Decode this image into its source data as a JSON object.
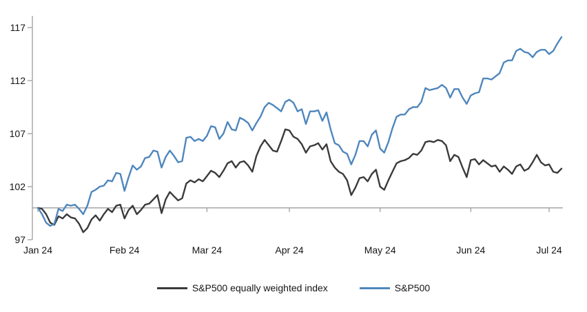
{
  "chart_data": {
    "type": "line",
    "title": "",
    "xlabel": "",
    "ylabel": "",
    "y_ticks": [
      97,
      102,
      107,
      112,
      117
    ],
    "ylim": [
      97,
      118.1
    ],
    "baseline_value": 100,
    "grid": "off",
    "legend_position": "bottom-center",
    "x_tick_labels": [
      "Jan 24",
      "Feb 24",
      "Mar 24",
      "Apr 24",
      "May 24",
      "Jun 24",
      "Jul 24"
    ],
    "x_tick_indices": [
      0,
      21,
      41,
      61,
      83,
      105,
      124
    ],
    "series": [
      {
        "id": "equal-weight",
        "name": "S&P500 equally weighted index",
        "color": "#3a3a3a",
        "values": [
          100.0,
          99.9,
          99.4,
          98.6,
          98.4,
          99.2,
          99.0,
          99.4,
          99.1,
          99.0,
          98.5,
          97.7,
          98.1,
          98.9,
          99.3,
          98.8,
          99.4,
          99.9,
          99.6,
          100.2,
          100.3,
          99.0,
          99.8,
          100.2,
          99.4,
          99.8,
          100.3,
          100.4,
          100.8,
          101.2,
          99.5,
          100.8,
          101.5,
          101.1,
          100.7,
          100.9,
          102.3,
          102.6,
          102.4,
          102.7,
          102.5,
          103.0,
          103.5,
          103.3,
          102.9,
          103.5,
          104.2,
          104.4,
          103.8,
          104.3,
          104.4,
          104.0,
          103.4,
          104.9,
          105.8,
          106.4,
          105.9,
          105.4,
          105.3,
          106.3,
          107.4,
          107.3,
          106.7,
          106.5,
          106.0,
          105.2,
          105.8,
          105.9,
          106.1,
          105.5,
          106.0,
          104.4,
          103.8,
          103.4,
          103.2,
          102.6,
          101.2,
          101.9,
          102.8,
          102.9,
          102.5,
          103.2,
          103.6,
          102.0,
          101.7,
          102.6,
          103.4,
          104.2,
          104.4,
          104.5,
          104.7,
          105.1,
          105.0,
          105.4,
          106.2,
          106.3,
          106.2,
          106.4,
          106.3,
          105.9,
          104.4,
          105.0,
          104.8,
          103.8,
          102.9,
          104.5,
          104.6,
          104.1,
          104.5,
          104.2,
          103.9,
          104.0,
          103.4,
          103.9,
          103.6,
          103.2,
          103.9,
          104.1,
          103.5,
          103.7,
          104.3,
          105.0,
          104.3,
          104.0,
          104.1,
          103.4,
          103.3,
          103.7
        ]
      },
      {
        "id": "sp500",
        "name": "S&P500",
        "color": "#4e86bd",
        "values": [
          100.0,
          99.4,
          98.6,
          98.3,
          98.5,
          99.9,
          99.7,
          100.3,
          100.2,
          100.3,
          99.9,
          99.4,
          100.2,
          101.5,
          101.7,
          102.0,
          102.1,
          102.6,
          102.5,
          103.3,
          103.2,
          101.6,
          102.9,
          104.0,
          103.6,
          103.9,
          104.7,
          104.8,
          105.4,
          105.3,
          103.8,
          104.8,
          105.4,
          104.9,
          104.3,
          104.4,
          106.6,
          106.7,
          106.3,
          106.5,
          106.3,
          106.8,
          107.7,
          107.6,
          106.5,
          107.0,
          108.1,
          107.4,
          107.3,
          108.5,
          108.3,
          108.0,
          107.3,
          108.0,
          108.6,
          109.5,
          109.9,
          109.7,
          109.4,
          109.1,
          110.0,
          110.2,
          109.9,
          109.1,
          109.3,
          107.9,
          109.1,
          109.1,
          109.2,
          108.2,
          109.0,
          107.4,
          106.1,
          105.9,
          105.3,
          105.1,
          104.1,
          105.0,
          106.3,
          106.3,
          105.8,
          106.9,
          107.3,
          105.6,
          105.2,
          106.2,
          107.5,
          108.6,
          108.8,
          108.8,
          109.3,
          109.5,
          109.5,
          110.0,
          111.3,
          111.1,
          111.2,
          111.3,
          111.6,
          111.3,
          110.4,
          111.2,
          111.2,
          110.4,
          109.8,
          110.6,
          110.8,
          110.9,
          112.2,
          112.2,
          112.1,
          112.4,
          112.7,
          113.7,
          113.9,
          113.9,
          114.8,
          115.0,
          114.7,
          114.6,
          114.2,
          114.7,
          114.9,
          114.9,
          114.5,
          114.8,
          115.5,
          116.1
        ]
      }
    ]
  },
  "colors": {
    "axis": "#9d9d9d",
    "tick_label": "#141414",
    "background": "#ffffff"
  }
}
